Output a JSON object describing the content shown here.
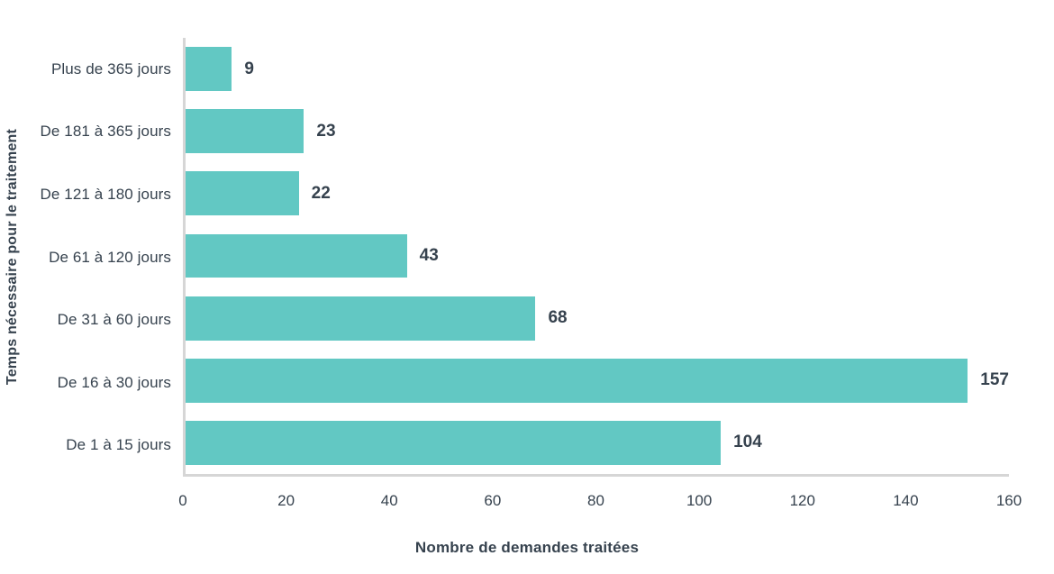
{
  "chart_data": {
    "type": "bar",
    "orientation": "horizontal",
    "categories": [
      "Plus de 365 jours",
      "De 181 à 365 jours",
      "De 121 à 180 jours",
      "De 61 à 120 jours",
      "De 31 à 60 jours",
      "De 16 à 30 jours",
      "De 1 à 15 jours"
    ],
    "values": [
      9,
      23,
      22,
      43,
      68,
      157,
      104
    ],
    "xlabel": "Nombre de demandes traitées",
    "ylabel": "Temps nécessaire pour le traitement",
    "xlim": [
      0,
      160
    ],
    "xticks": [
      0,
      20,
      40,
      60,
      80,
      100,
      120,
      140,
      160
    ],
    "grid": false,
    "legend": null,
    "colors": {
      "bar": "#62c8c3",
      "text": "#36424e",
      "axis": "#d6d6d6"
    }
  }
}
